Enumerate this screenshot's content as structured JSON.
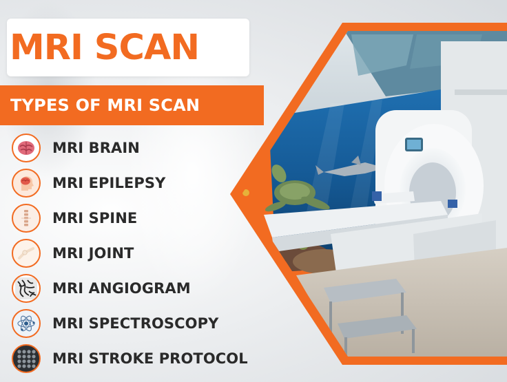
{
  "title": "MRI SCAN",
  "subtitle": "TYPES OF MRI SCAN",
  "items": [
    {
      "label": "MRI BRAIN",
      "icon": "brain-icon"
    },
    {
      "label": "MRI EPILEPSY",
      "icon": "head-brain-icon"
    },
    {
      "label": "MRI SPINE",
      "icon": "spine-icon"
    },
    {
      "label": "MRI JOINT",
      "icon": "joint-icon"
    },
    {
      "label": "MRI ANGIOGRAM",
      "icon": "blood-vessels-icon"
    },
    {
      "label": "MRI SPECTROSCOPY",
      "icon": "atom-icon"
    },
    {
      "label": "MRI STROKE PROTOCOL",
      "icon": "brain-scan-grid-icon"
    }
  ],
  "colors": {
    "accent": "#f26b21",
    "text": "#2a2a2a"
  }
}
